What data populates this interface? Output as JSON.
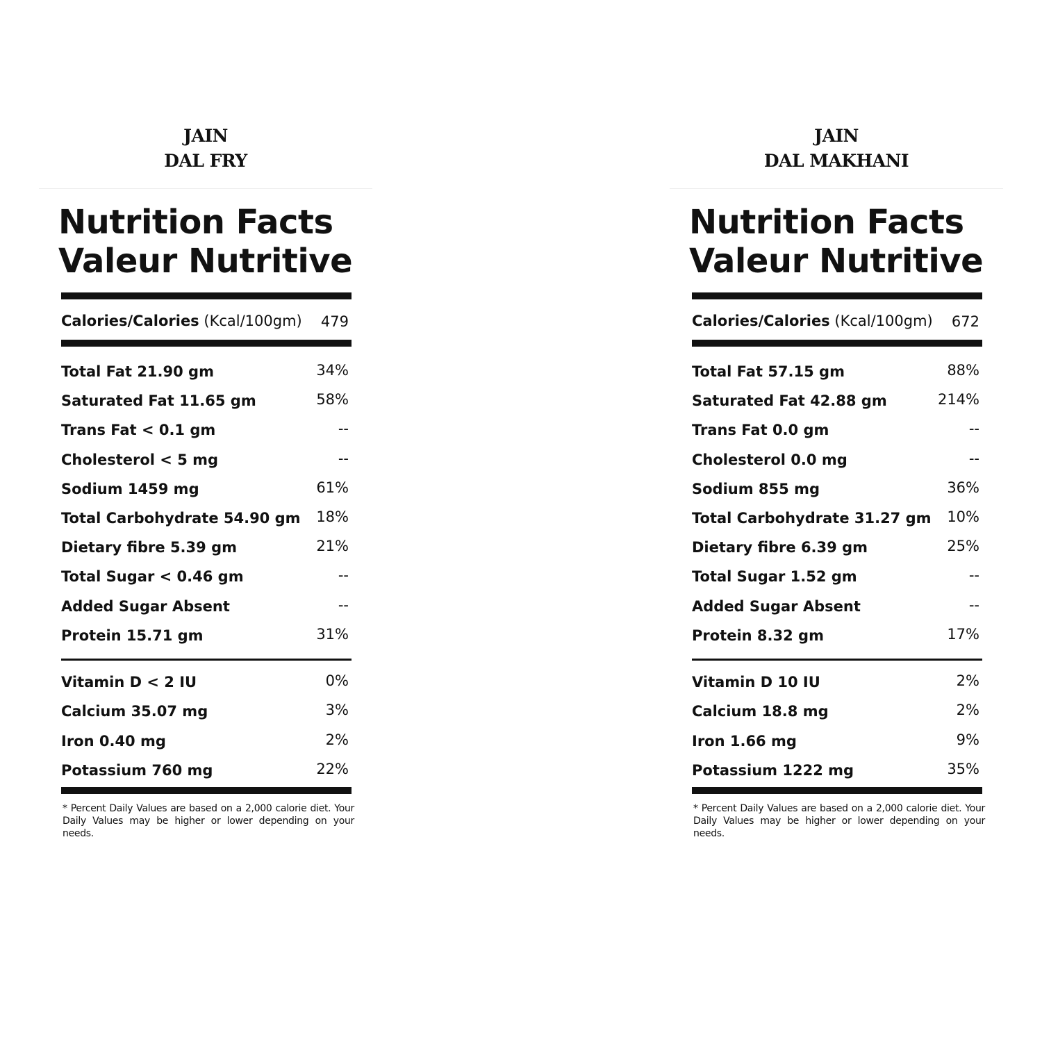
{
  "panels": [
    {
      "title_line1": "JAIN",
      "title_line2": "DAL FRY",
      "heading_en": "Nutrition Facts",
      "heading_fr": "Valeur Nutritive",
      "calories_label": "Calories/Calories",
      "calories_unit": "(Kcal/100gm)",
      "calories_value": "479",
      "nutrients": [
        {
          "label": "Total Fat 21.90 gm",
          "value": "34%"
        },
        {
          "label": "Saturated Fat 11.65 gm",
          "value": "58%"
        },
        {
          "label": "Trans Fat < 0.1 gm",
          "value": "--"
        },
        {
          "label": "Cholesterol < 5 mg",
          "value": "--"
        },
        {
          "label": "Sodium 1459 mg",
          "value": "61%"
        },
        {
          "label": "Total Carbohydrate 54.90 gm",
          "value": "18%"
        },
        {
          "label": "Dietary fibre 5.39 gm",
          "value": "21%"
        },
        {
          "label": "Total Sugar < 0.46 gm",
          "value": "--"
        },
        {
          "label": "Added Sugar Absent",
          "value": "--"
        },
        {
          "label": "Protein 15.71 gm",
          "value": "31%"
        }
      ],
      "vitamins": [
        {
          "label": "Vitamin D < 2 IU",
          "value": "0%"
        },
        {
          "label": "Calcium 35.07 mg",
          "value": "3%"
        },
        {
          "label": "Iron 0.40 mg",
          "value": "2%"
        },
        {
          "label": "Potassium 760 mg",
          "value": "22%"
        }
      ],
      "footnote": "* Percent Daily Values are based on a 2,000 calorie diet. Your Daily Values may be higher or lower depending on your needs."
    },
    {
      "title_line1": "JAIN",
      "title_line2": "DAL MAKHANI",
      "heading_en": "Nutrition Facts",
      "heading_fr": "Valeur Nutritive",
      "calories_label": "Calories/Calories",
      "calories_unit": "(Kcal/100gm)",
      "calories_value": "672",
      "nutrients": [
        {
          "label": "Total Fat 57.15 gm",
          "value": "88%"
        },
        {
          "label": "Saturated Fat 42.88 gm",
          "value": "214%"
        },
        {
          "label": "Trans Fat 0.0 gm",
          "value": "--"
        },
        {
          "label": "Cholesterol 0.0 mg",
          "value": "--"
        },
        {
          "label": "Sodium 855 mg",
          "value": "36%"
        },
        {
          "label": "Total Carbohydrate 31.27 gm",
          "value": "10%"
        },
        {
          "label": "Dietary fibre 6.39 gm",
          "value": "25%"
        },
        {
          "label": "Total Sugar 1.52 gm",
          "value": "--"
        },
        {
          "label": "Added Sugar Absent",
          "value": "--"
        },
        {
          "label": "Protein 8.32 gm",
          "value": "17%"
        }
      ],
      "vitamins": [
        {
          "label": "Vitamin D 10 IU",
          "value": "2%"
        },
        {
          "label": "Calcium 18.8 mg",
          "value": "2%"
        },
        {
          "label": "Iron 1.66 mg",
          "value": "9%"
        },
        {
          "label": "Potassium 1222 mg",
          "value": "35%"
        }
      ],
      "footnote": "* Percent Daily Values are based on a 2,000 calorie diet. Your Daily Values may be higher or lower depending on your needs."
    }
  ]
}
